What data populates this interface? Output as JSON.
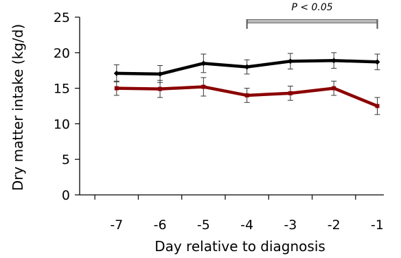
{
  "chart_data": {
    "type": "line",
    "xlabel": "Day relative to diagnosis",
    "ylabel": "Dry matter intake (kg/d)",
    "x": [
      -7,
      -6,
      -5,
      -4,
      -3,
      -2,
      -1
    ],
    "x_tick_labels": [
      "-7",
      "-6",
      "-5",
      "-4",
      "-3",
      "-2",
      "-1"
    ],
    "ylim": [
      0,
      25
    ],
    "y_ticks": [
      0,
      5,
      10,
      15,
      20,
      25
    ],
    "y_tick_labels": [
      "0",
      "5",
      "10",
      "15",
      "20",
      "25"
    ],
    "grid": false,
    "series": [
      {
        "color": "#000000",
        "marker": "diamond",
        "values": [
          17.1,
          17.0,
          18.5,
          18.0,
          18.8,
          18.9,
          18.7
        ],
        "error": [
          1.2,
          1.2,
          1.3,
          1.0,
          1.1,
          1.1,
          1.1
        ]
      },
      {
        "color": "#8b0000",
        "marker": "square",
        "values": [
          15.0,
          14.9,
          15.2,
          14.0,
          14.3,
          15.0,
          12.5
        ],
        "error": [
          1.0,
          1.2,
          1.3,
          1.0,
          1.0,
          1.0,
          1.2
        ]
      }
    ],
    "annotations": [
      {
        "text": "P < 0.05",
        "x_start": -4,
        "x_end": -1
      }
    ]
  }
}
